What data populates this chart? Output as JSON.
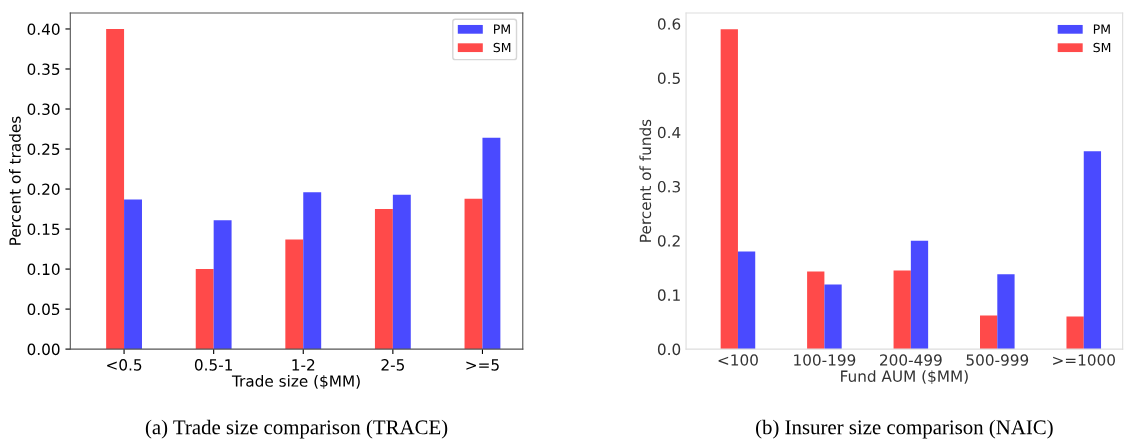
{
  "chart_data": [
    {
      "type": "bar",
      "categories": [
        "<0.5",
        "0.5-1",
        "1-2",
        "2-5",
        ">=5"
      ],
      "xlabel": "Trade size ($MM)",
      "ylabel": "Percent of trades",
      "series": [
        {
          "name": "SM",
          "color": "#ff4a4a",
          "values": [
            0.4,
            0.1,
            0.137,
            0.175,
            0.188
          ]
        },
        {
          "name": "PM",
          "color": "#4a4aff",
          "values": [
            0.187,
            0.161,
            0.196,
            0.193,
            0.264
          ]
        }
      ],
      "ylim": [
        0,
        0.42
      ],
      "yticks": [
        {
          "value": 0,
          "label": "0.00"
        },
        0.05,
        {
          "value": 0.1,
          "label": "0.10"
        },
        0.15,
        {
          "value": 0.2,
          "label": "0.20"
        },
        0.25,
        {
          "value": 0.3,
          "label": "0.30"
        },
        0.35,
        {
          "value": 0.4,
          "label": "0.40"
        }
      ],
      "legend": "top right",
      "grid": false,
      "annotations": [
        "(a) Trade size comparison (TRACE)"
      ]
    },
    {
      "type": "bar",
      "categories": [
        "<100",
        "100-199",
        "200-499",
        "500-999",
        ">=1000"
      ],
      "xlabel": "Fund AUM ($MM)",
      "ylabel": "Percent of funds",
      "series": [
        {
          "name": "SM",
          "color": "#ff4a4a",
          "values": [
            0.59,
            0.143,
            0.145,
            0.062,
            0.06
          ]
        },
        {
          "name": "PM",
          "color": "#4a4aff",
          "values": [
            0.18,
            0.119,
            0.2,
            0.138,
            0.365
          ]
        }
      ],
      "ylim": [
        0,
        0.62
      ],
      "yticks": [
        {
          "value": 0,
          "label": "0.0"
        },
        0.1,
        0.2,
        0.3,
        0.4,
        0.5,
        0.6
      ],
      "legend": "top right",
      "grid": false,
      "annotations": [
        "(b) Insurer size comparison (NAIC)"
      ]
    }
  ]
}
